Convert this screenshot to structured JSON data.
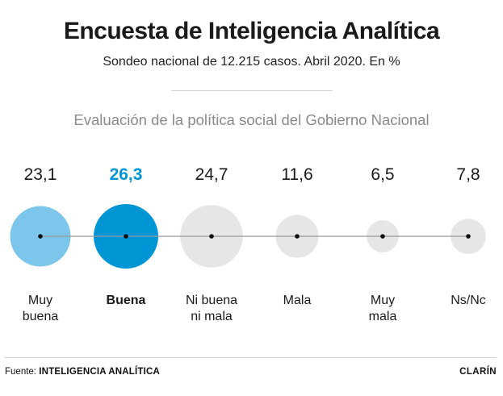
{
  "header": {
    "title": "Encuesta de Inteligencia Analítica",
    "subtitle": "Sondeo nacional de 12.215 casos. Abril 2020. En %"
  },
  "chart_data": {
    "type": "bubble",
    "title": "Evaluación de la política social del Gobierno Nacional",
    "categories": [
      {
        "label": [
          "Muy",
          "buena"
        ],
        "value": 23.1,
        "value_label": "23,1",
        "highlight": false
      },
      {
        "label": [
          "Buena"
        ],
        "value": 26.3,
        "value_label": "26,3",
        "highlight": true
      },
      {
        "label": [
          "Ni buena",
          "ni mala"
        ],
        "value": 24.7,
        "value_label": "24,7",
        "highlight": false
      },
      {
        "label": [
          "Mala"
        ],
        "value": 11.6,
        "value_label": "11,6",
        "highlight": false
      },
      {
        "label": [
          "Muy",
          "mala"
        ],
        "value": 6.5,
        "value_label": "6,5",
        "highlight": false
      },
      {
        "label": [
          "Ns/Nc"
        ],
        "value": 7.8,
        "value_label": "7,8",
        "highlight": false
      }
    ],
    "unit": "%",
    "colors": {
      "muy_buena": "#7cc6ec",
      "highlight": "#0096d6",
      "neutral": "#e6e6e6",
      "highlight_text": "#0096d6",
      "text": "#1a1a1a",
      "axis_line": "#999999"
    }
  },
  "footer": {
    "source_prefix": "Fuente:",
    "source_name": "INTELIGENCIA ANALÍTICA",
    "brand": "CLARÍN"
  }
}
